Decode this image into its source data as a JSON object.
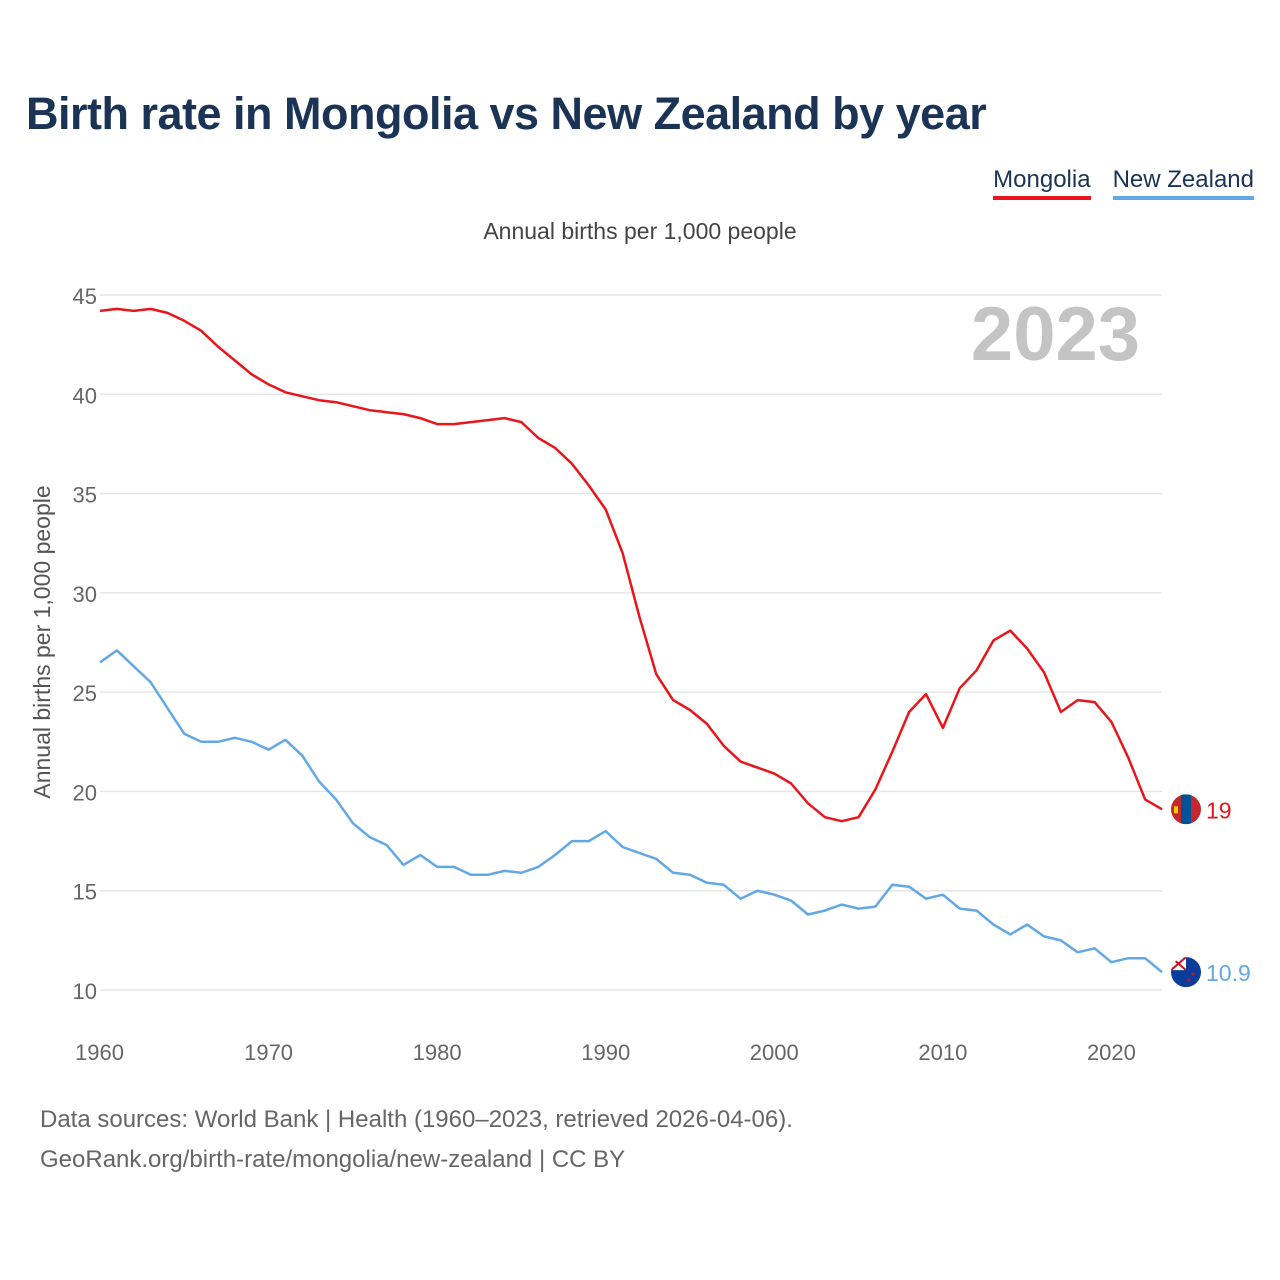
{
  "header": {
    "title": "Birth rate in Mongolia vs New Zealand by year",
    "subtitle": "Annual births per 1,000 people"
  },
  "footer": {
    "line1": "Data sources: World Bank | Health (1960–2023, retrieved 2026-04-06).",
    "line2": "GeoRank.org/birth-rate/mongolia/new-zealand | CC BY"
  },
  "colors": {
    "mongolia": "#e8161b",
    "new_zealand": "#62a8e5",
    "grid": "#e6e6e6",
    "year_watermark": "#c4c4c4"
  },
  "chart_data": {
    "type": "line",
    "title": "Birth rate in Mongolia vs New Zealand by year",
    "ylabel": "Annual births per 1,000 people",
    "xlabel": "",
    "year_label": "2023",
    "xlim": [
      1960,
      2023
    ],
    "ylim": [
      10,
      45
    ],
    "x_ticks": [
      1960,
      1970,
      1980,
      1990,
      2000,
      2010,
      2020
    ],
    "y_ticks": [
      10,
      15,
      20,
      25,
      30,
      35,
      40,
      45
    ],
    "legend": [
      "Mongolia",
      "New Zealand"
    ],
    "x": [
      1960,
      1961,
      1962,
      1963,
      1964,
      1965,
      1966,
      1967,
      1968,
      1969,
      1970,
      1971,
      1972,
      1973,
      1974,
      1975,
      1976,
      1977,
      1978,
      1979,
      1980,
      1981,
      1982,
      1983,
      1984,
      1985,
      1986,
      1987,
      1988,
      1989,
      1990,
      1991,
      1992,
      1993,
      1994,
      1995,
      1996,
      1997,
      1998,
      1999,
      2000,
      2001,
      2002,
      2003,
      2004,
      2005,
      2006,
      2007,
      2008,
      2009,
      2010,
      2011,
      2012,
      2013,
      2014,
      2015,
      2016,
      2017,
      2018,
      2019,
      2020,
      2021,
      2022,
      2023
    ],
    "series": [
      {
        "name": "Mongolia",
        "end_label": "19",
        "values": [
          44.2,
          44.3,
          44.2,
          44.3,
          44.1,
          43.7,
          43.2,
          42.4,
          41.7,
          41.0,
          40.5,
          40.1,
          39.9,
          39.7,
          39.6,
          39.4,
          39.2,
          39.1,
          39.0,
          38.8,
          38.5,
          38.5,
          38.6,
          38.7,
          38.8,
          38.6,
          37.8,
          37.3,
          36.5,
          35.4,
          34.2,
          32.0,
          28.8,
          25.9,
          24.6,
          24.1,
          23.4,
          22.3,
          21.5,
          21.2,
          20.9,
          20.4,
          19.4,
          18.7,
          18.5,
          18.7,
          20.1,
          22.0,
          24.0,
          24.9,
          23.2,
          25.2,
          26.1,
          27.6,
          28.1,
          27.2,
          26.0,
          24.0,
          24.6,
          24.5,
          23.5,
          21.7,
          19.6,
          19.1
        ]
      },
      {
        "name": "New Zealand",
        "end_label": "10.9",
        "values": [
          26.5,
          27.1,
          26.3,
          25.5,
          24.2,
          22.9,
          22.5,
          22.5,
          22.7,
          22.5,
          22.1,
          22.6,
          21.8,
          20.5,
          19.6,
          18.4,
          17.7,
          17.3,
          16.3,
          16.8,
          16.2,
          16.2,
          15.8,
          15.8,
          16.0,
          15.9,
          16.2,
          16.8,
          17.5,
          17.5,
          18.0,
          17.2,
          16.9,
          16.6,
          15.9,
          15.8,
          15.4,
          15.3,
          14.6,
          15.0,
          14.8,
          14.5,
          13.8,
          14.0,
          14.3,
          14.1,
          14.2,
          15.3,
          15.2,
          14.6,
          14.8,
          14.1,
          14.0,
          13.3,
          12.8,
          13.3,
          12.7,
          12.5,
          11.9,
          12.1,
          11.4,
          11.6,
          11.6,
          10.9
        ]
      }
    ]
  }
}
